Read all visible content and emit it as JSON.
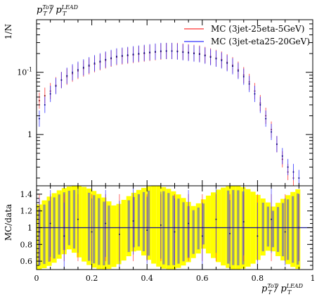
{
  "chart_data": [
    {
      "type": "line",
      "panel": "main",
      "title": "p_T^{ToT} / p_T^{LEAD}",
      "ylabel": "1/N",
      "xlim": [
        0,
        1
      ],
      "ylim": [
        0.015,
        7
      ],
      "yscale": "log",
      "ytick_labels": [
        "10^{-1}",
        "1"
      ],
      "legend_position": "top-right",
      "series": [
        {
          "name": "MC (3jet-25eta-5GeV)",
          "color": "#ff3333",
          "x": [
            0.01,
            0.03,
            0.05,
            0.07,
            0.09,
            0.11,
            0.13,
            0.15,
            0.17,
            0.19,
            0.21,
            0.23,
            0.25,
            0.27,
            0.29,
            0.31,
            0.33,
            0.35,
            0.37,
            0.39,
            0.41,
            0.43,
            0.45,
            0.47,
            0.49,
            0.51,
            0.53,
            0.55,
            0.57,
            0.59,
            0.61,
            0.63,
            0.65,
            0.67,
            0.69,
            0.71,
            0.73,
            0.75,
            0.77,
            0.79,
            0.81,
            0.83,
            0.85,
            0.87,
            0.89,
            0.91,
            0.93
          ],
          "y": [
            0.35,
            0.42,
            0.5,
            0.62,
            0.75,
            0.85,
            0.95,
            1.05,
            1.15,
            1.25,
            1.35,
            1.45,
            1.55,
            1.65,
            1.75,
            1.8,
            1.85,
            1.9,
            1.95,
            2.0,
            2.05,
            2.1,
            2.15,
            2.2,
            2.2,
            2.2,
            2.15,
            2.1,
            2.05,
            2.0,
            1.9,
            1.8,
            1.7,
            1.6,
            1.45,
            1.3,
            1.1,
            0.9,
            0.7,
            0.5,
            0.32,
            0.2,
            0.12,
            0.07,
            0.04,
            0.025,
            0.02
          ]
        },
        {
          "name": "MC (3jet-eta25-20GeV)",
          "color": "#3333ff",
          "x": [
            0.01,
            0.03,
            0.05,
            0.07,
            0.09,
            0.11,
            0.13,
            0.15,
            0.17,
            0.19,
            0.21,
            0.23,
            0.25,
            0.27,
            0.29,
            0.31,
            0.33,
            0.35,
            0.37,
            0.39,
            0.41,
            0.43,
            0.45,
            0.47,
            0.49,
            0.51,
            0.53,
            0.55,
            0.57,
            0.59,
            0.61,
            0.63,
            0.65,
            0.67,
            0.69,
            0.71,
            0.73,
            0.75,
            0.77,
            0.79,
            0.81,
            0.83,
            0.85,
            0.87,
            0.89,
            0.91,
            0.93,
            0.95
          ],
          "y": [
            0.18,
            0.3,
            0.45,
            0.6,
            0.75,
            0.88,
            1.0,
            1.1,
            1.2,
            1.3,
            1.4,
            1.5,
            1.6,
            1.7,
            1.8,
            1.85,
            1.9,
            1.95,
            2.0,
            2.05,
            2.1,
            2.15,
            2.2,
            2.2,
            2.2,
            2.15,
            2.1,
            2.05,
            2.0,
            1.95,
            1.85,
            1.75,
            1.65,
            1.55,
            1.4,
            1.25,
            1.05,
            0.85,
            0.65,
            0.45,
            0.3,
            0.18,
            0.11,
            0.07,
            0.045,
            0.03,
            0.025,
            0.02
          ]
        }
      ]
    },
    {
      "type": "line",
      "panel": "ratio",
      "ylabel": "MC/data",
      "xlabel": "p_T^{ToT} / p_T^{LEAD}",
      "xlim": [
        0,
        1
      ],
      "ylim": [
        0.5,
        1.5
      ],
      "xticks": [
        0,
        0.2,
        0.4,
        0.6,
        0.8,
        1
      ],
      "yticks": [
        0.6,
        0.8,
        1,
        1.2,
        1.4
      ],
      "reference_line": 1,
      "band_color": "#ffff00",
      "band_x_range": [
        0.01,
        0.95
      ],
      "series": [
        {
          "name": "MC (3jet-25eta-5GeV)",
          "color": "#ff3333",
          "x": [
            0.01,
            0.05,
            0.1,
            0.15,
            0.2,
            0.25,
            0.3,
            0.35,
            0.4,
            0.45,
            0.5,
            0.55,
            0.6,
            0.65,
            0.7,
            0.75,
            0.8,
            0.85,
            0.9,
            0.95
          ],
          "y": [
            1,
            1,
            1,
            1,
            1,
            1,
            1,
            1,
            1,
            1,
            1,
            1,
            1,
            1,
            1,
            1,
            1,
            1,
            1,
            1
          ]
        },
        {
          "name": "MC (3jet-eta25-20GeV)",
          "color": "#3333ff",
          "x": [
            0.01,
            0.05,
            0.1,
            0.15,
            0.2,
            0.25,
            0.3,
            0.35,
            0.4,
            0.45,
            0.5,
            0.55,
            0.6,
            0.65,
            0.7,
            0.75,
            0.8,
            0.85,
            0.9,
            0.95
          ],
          "y": [
            0.95,
            1.05,
            0.9,
            1.1,
            0.95,
            1.05,
            0.92,
            1.08,
            0.97,
            1.03,
            0.95,
            1.05,
            0.9,
            1.1,
            0.93,
            1.07,
            0.9,
            1.1,
            0.95,
            1.0
          ]
        }
      ]
    }
  ]
}
